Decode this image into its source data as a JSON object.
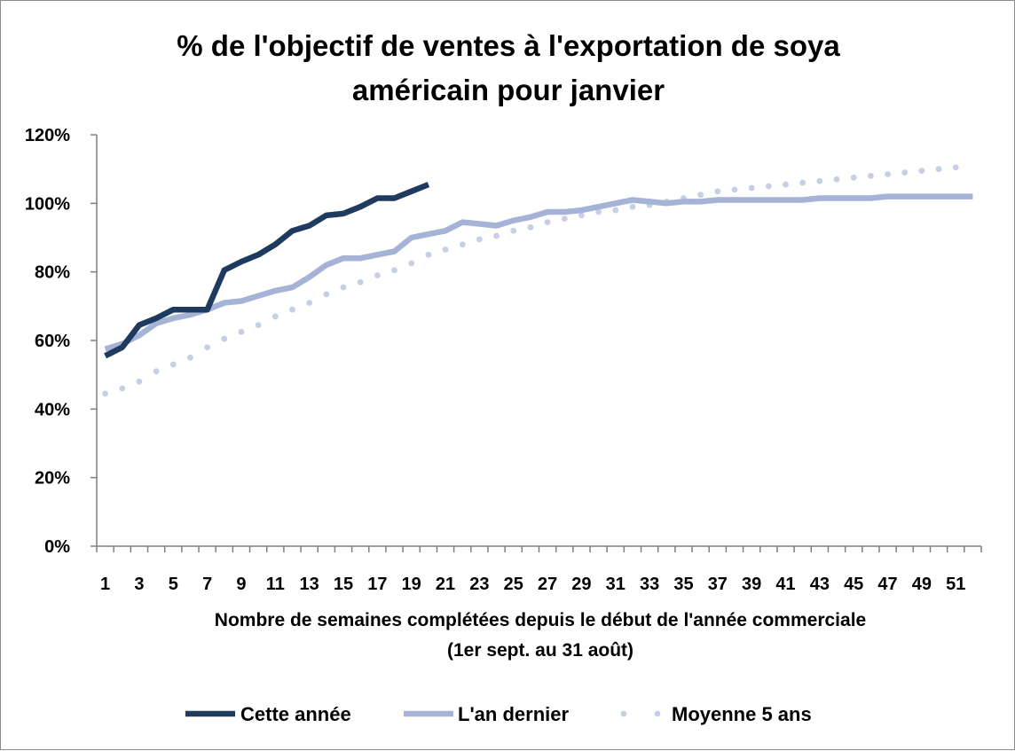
{
  "chart_data": {
    "type": "line",
    "title_lines": [
      "% de l'objectif de ventes à l'exportation de soya",
      "américain pour janvier"
    ],
    "xlabel_lines": [
      "Nombre de semaines complétées depuis le début de l'année commerciale",
      "(1er sept. au 31 août)"
    ],
    "ylabel": "",
    "x_ticks": [
      "1",
      "3",
      "5",
      "7",
      "9",
      "11",
      "13",
      "15",
      "17",
      "19",
      "21",
      "23",
      "25",
      "27",
      "29",
      "31",
      "33",
      "35",
      "37",
      "39",
      "41",
      "43",
      "45",
      "47",
      "49",
      "51"
    ],
    "y_ticks": [
      "0%",
      "20%",
      "40%",
      "60%",
      "80%",
      "100%",
      "120%"
    ],
    "ylim": [
      0,
      120
    ],
    "xlim": [
      1,
      52
    ],
    "grid": false,
    "legend_position": "bottom",
    "series": [
      {
        "name": "Cette année",
        "style": "solid",
        "color": "#1f3a5f",
        "x": [
          1,
          2,
          3,
          4,
          5,
          6,
          7,
          8,
          9,
          10,
          11,
          12,
          13,
          14,
          15,
          16,
          17,
          18,
          19,
          20
        ],
        "values": [
          55.5,
          58,
          64.5,
          66.5,
          69,
          69,
          69,
          80.5,
          83,
          85,
          88,
          92,
          93.5,
          96.5,
          97,
          99,
          101.5,
          101.5,
          103.5,
          105.5
        ]
      },
      {
        "name": "L'an dernier",
        "style": "solid",
        "color": "#a4b3d6",
        "x": [
          1,
          2,
          3,
          4,
          5,
          6,
          7,
          8,
          9,
          10,
          11,
          12,
          13,
          14,
          15,
          16,
          17,
          18,
          19,
          20,
          21,
          22,
          23,
          24,
          25,
          26,
          27,
          28,
          29,
          30,
          31,
          32,
          33,
          34,
          35,
          36,
          37,
          38,
          39,
          40,
          41,
          42,
          43,
          44,
          45,
          46,
          47,
          48,
          49,
          50,
          51,
          52
        ],
        "values": [
          57.5,
          59,
          61.5,
          65,
          66.5,
          67.5,
          69,
          71,
          71.5,
          73,
          74.5,
          75.5,
          78.5,
          82,
          84,
          84,
          85,
          86,
          90,
          91,
          92,
          94.5,
          94,
          93.5,
          95,
          96,
          97.5,
          97.5,
          98,
          99,
          100,
          101,
          100.5,
          100,
          100.5,
          100.5,
          101,
          101,
          101,
          101,
          101,
          101,
          101.5,
          101.5,
          101.5,
          101.5,
          102,
          102,
          102,
          102,
          102,
          102
        ]
      },
      {
        "name": "Moyenne 5 ans",
        "style": "dotted",
        "color": "#c6cfe4",
        "x": [
          1,
          2,
          3,
          4,
          5,
          6,
          7,
          8,
          9,
          10,
          11,
          12,
          13,
          14,
          15,
          16,
          17,
          18,
          19,
          20,
          21,
          22,
          23,
          24,
          25,
          26,
          27,
          28,
          29,
          30,
          31,
          32,
          33,
          34,
          35,
          36,
          37,
          38,
          39,
          40,
          41,
          42,
          43,
          44,
          45,
          46,
          47,
          48,
          49,
          50,
          51
        ],
        "values": [
          44.5,
          46,
          48,
          51,
          53,
          55,
          58,
          60.5,
          62.5,
          64.5,
          67,
          69,
          71,
          73.5,
          75.5,
          77,
          79,
          80.5,
          82.5,
          85,
          86.5,
          88,
          89.5,
          90.5,
          92,
          93,
          94.5,
          95.5,
          96.5,
          97.5,
          98,
          99,
          99.5,
          100.5,
          101.5,
          102.5,
          103.5,
          104,
          104.5,
          105,
          105.5,
          106,
          106.5,
          107,
          107.5,
          108,
          108.5,
          109,
          109.5,
          110,
          110.5
        ]
      }
    ]
  }
}
